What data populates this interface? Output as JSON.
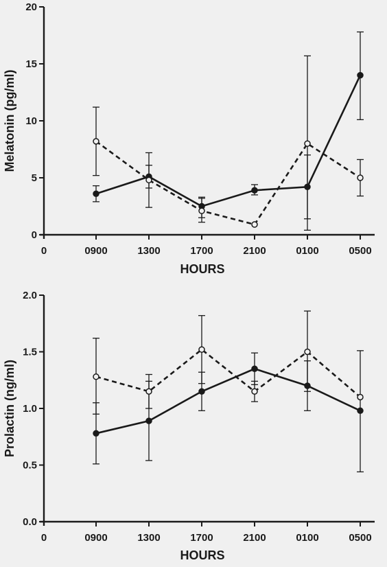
{
  "colors": {
    "background": "#f0f0f0",
    "ink": "#1a1a1a"
  },
  "chart_data": [
    {
      "type": "line",
      "xlabel": "HOURS",
      "ylabel": "Melatonin (pg/ml)",
      "categories": [
        "0900",
        "1300",
        "1700",
        "2100",
        "0100",
        "0500"
      ],
      "x_origin_label": "0",
      "ylim": [
        0,
        20
      ],
      "yticks": [
        0,
        5,
        10,
        15,
        20
      ],
      "ytick_labels": [
        "0",
        "5",
        "10",
        "15",
        "20"
      ],
      "grid": false,
      "series": [
        {
          "style": "solid-filled",
          "values": [
            3.6,
            5.1,
            2.5,
            3.9,
            4.2,
            14.0
          ],
          "err_low": [
            2.9,
            4.1,
            1.5,
            3.5,
            0.4,
            10.1
          ],
          "err_high": [
            4.3,
            6.1,
            3.3,
            4.4,
            7.0,
            17.8
          ]
        },
        {
          "style": "dashed-open",
          "values": [
            8.2,
            4.8,
            2.1,
            0.9,
            8.0,
            5.0
          ],
          "err_low": [
            5.2,
            2.4,
            1.1,
            0.9,
            1.4,
            3.4
          ],
          "err_high": [
            11.2,
            7.2,
            3.2,
            0.9,
            15.7,
            6.6
          ]
        }
      ]
    },
    {
      "type": "line",
      "xlabel": "HOURS",
      "ylabel": "Prolactin (ng/ml)",
      "categories": [
        "0900",
        "1300",
        "1700",
        "2100",
        "0100",
        "0500"
      ],
      "x_origin_label": "0",
      "ylim": [
        0,
        2.0
      ],
      "yticks": [
        0,
        0.5,
        1.0,
        1.5,
        2.0
      ],
      "ytick_labels": [
        "0.0",
        "0.5",
        "1.0",
        "1.5",
        "2.0"
      ],
      "grid": false,
      "series": [
        {
          "style": "solid-filled",
          "values": [
            0.78,
            0.89,
            1.15,
            1.35,
            1.2,
            0.98
          ],
          "err_low": [
            0.51,
            0.54,
            0.98,
            1.21,
            0.98,
            0.44
          ],
          "err_high": [
            1.05,
            1.24,
            1.32,
            1.49,
            1.42,
            1.51
          ]
        },
        {
          "style": "dashed-open",
          "values": [
            1.28,
            1.15,
            1.52,
            1.15,
            1.5,
            1.1
          ],
          "err_low": [
            0.95,
            1.0,
            1.22,
            1.06,
            1.15,
            1.1
          ],
          "err_high": [
            1.62,
            1.3,
            1.82,
            1.24,
            1.86,
            1.1
          ]
        }
      ]
    }
  ]
}
